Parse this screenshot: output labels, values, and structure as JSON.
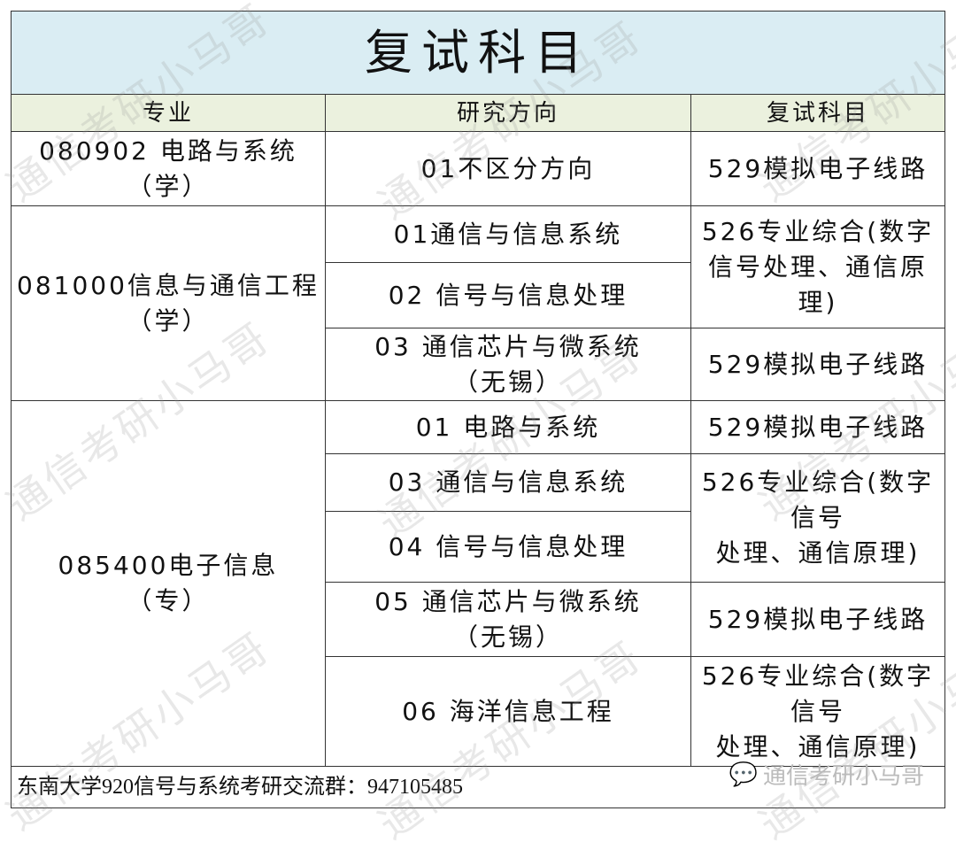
{
  "title": "复试科目",
  "headers": [
    "专业",
    "研究方向",
    "复试科目"
  ],
  "majors": [
    "080902 电路与系统\n（学）",
    "081000信息与通信工程\n（学）",
    "085400电子信息\n（专）"
  ],
  "directions": [
    "01不区分方向",
    "01通信与信息系统",
    "02 信号与信息处理",
    "03 通信芯片与微系统\n（无锡）",
    "01 电路与系统",
    "03 通信与信息系统",
    "04 信号与信息处理",
    "05 通信芯片与微系统\n（无锡）",
    "06 海洋信息工程"
  ],
  "subjects": [
    "529模拟电子线路",
    "526专业综合(数字\n信号处理、通信原\n理)",
    "529模拟电子线路",
    "529模拟电子线路",
    "526专业综合(数字\n信号\n处理、通信原理)",
    "529模拟电子线路",
    "526专业综合(数字\n信号\n处理、通信原理)"
  ],
  "footer": "东南大学920信号与系统考研交流群：947105485",
  "watermark": "通信考研小马哥",
  "logo_text": "通信考研小马哥"
}
